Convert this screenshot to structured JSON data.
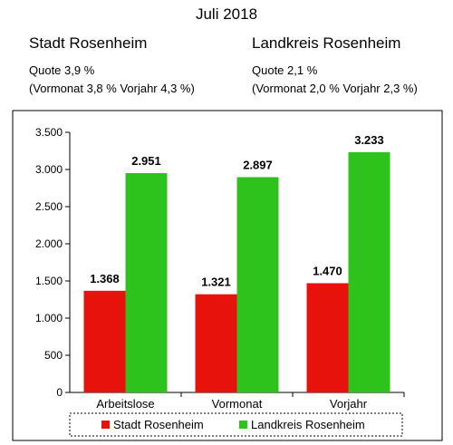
{
  "header": {
    "title": "Juli 2018",
    "left": {
      "name": "Stadt Rosenheim",
      "line1": "Quote  3,9 %",
      "line2": "(Vormonat 3,8 % Vorjahr 4,3  %)"
    },
    "right": {
      "name": "Landkreis Rosenheim",
      "line1": "Quote 2,1 %",
      "line2": "(Vormonat 2,0 % Vorjahr  2,3 %)"
    }
  },
  "chart_data": {
    "type": "bar",
    "categories": [
      "Arbeitslose",
      "Vormonat",
      "Vorjahr"
    ],
    "series": [
      {
        "name": "Stadt Rosenheim",
        "color": "#e8120c",
        "values": [
          1368,
          1321,
          1470
        ],
        "labels": [
          "1.368",
          "1.321",
          "1.470"
        ]
      },
      {
        "name": "Landkreis Rosenheim",
        "color": "#2ec21d",
        "values": [
          2951,
          2897,
          3233
        ],
        "labels": [
          "2.951",
          "2.897",
          "3.233"
        ]
      }
    ],
    "ylim": [
      0,
      3500
    ],
    "yticks": [
      0,
      500,
      1000,
      1500,
      2000,
      2500,
      3000,
      3500
    ],
    "ytick_labels": [
      "0",
      "500",
      "1.000",
      "1.500",
      "2.000",
      "2.500",
      "3.000",
      "3.500"
    ],
    "grid": false,
    "legend_position": "bottom"
  }
}
